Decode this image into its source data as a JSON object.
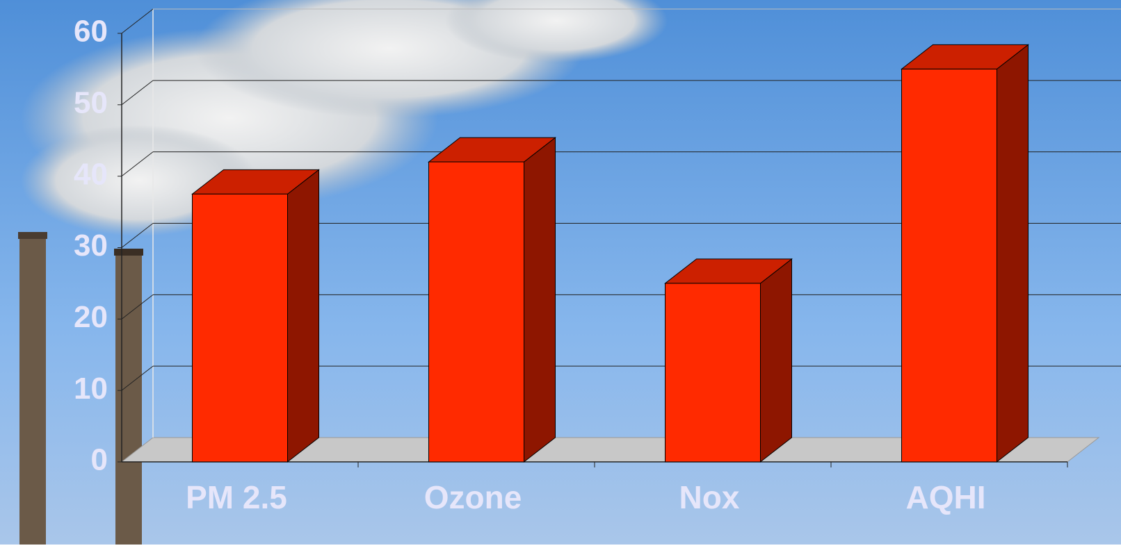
{
  "chart_data": {
    "type": "bar",
    "categories": [
      "PM 2.5",
      "Ozone",
      "Nox",
      "AQHI"
    ],
    "values": [
      37.5,
      42,
      25,
      55
    ],
    "color": "#ff2a00",
    "ylim": [
      0,
      60
    ],
    "yticks": [
      0,
      10,
      20,
      30,
      40,
      50,
      60
    ],
    "grid": true
  }
}
